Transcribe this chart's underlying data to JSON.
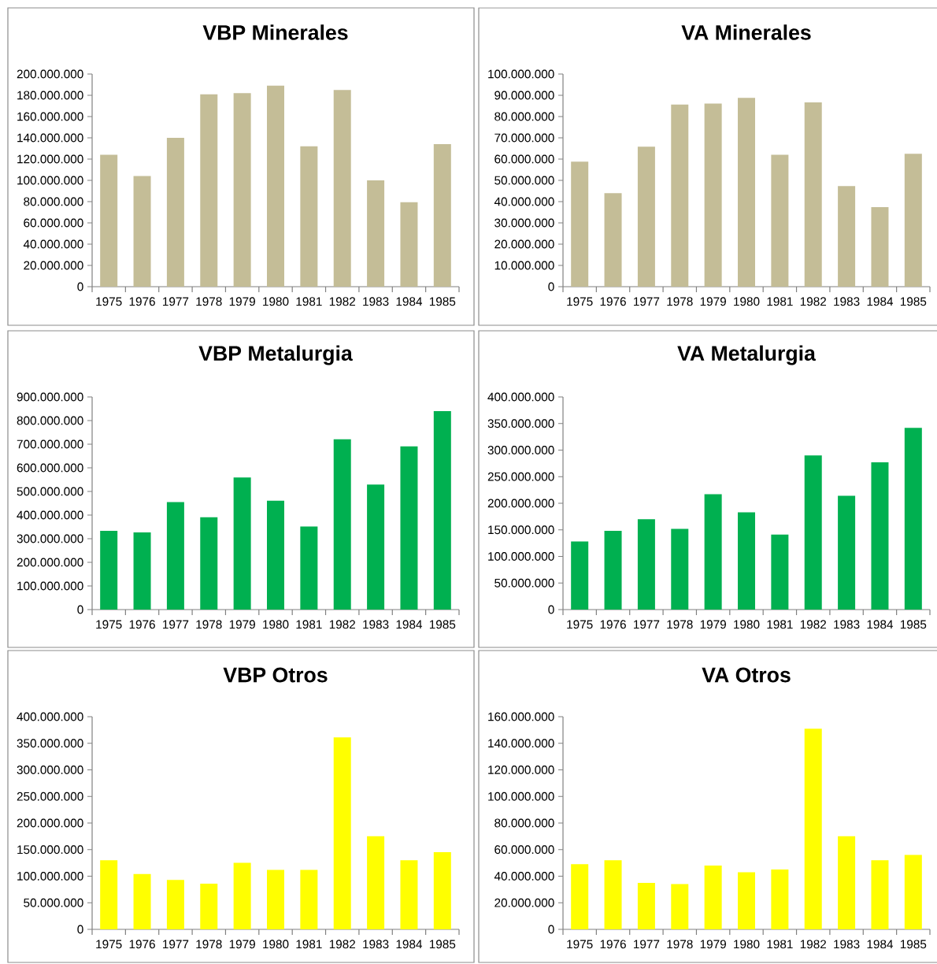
{
  "chart_data": [
    {
      "type": "bar",
      "title": "VBP Minerales",
      "categories": [
        "1975",
        "1976",
        "1977",
        "1978",
        "1979",
        "1980",
        "1981",
        "1982",
        "1983",
        "1984",
        "1985"
      ],
      "values": [
        124000000,
        104000000,
        140000000,
        181000000,
        182000000,
        189000000,
        132000000,
        185000000,
        100000000,
        79500000,
        134000000
      ],
      "color": "#c4bd97",
      "ylim": [
        0,
        200000000
      ],
      "yticks": [
        0,
        {
          "value": 20000000,
          "label": "20.000.000"
        },
        {
          "value": 40000000,
          "label": "40.000.000"
        },
        {
          "value": 60000000,
          "label": "60.000.000"
        },
        {
          "value": 80000000,
          "label": "80.000.000"
        },
        {
          "value": 100000000,
          "label": "100.000.000"
        },
        {
          "value": 120000000,
          "label": "120.000.000"
        },
        {
          "value": 140000000,
          "label": "140.000.000"
        },
        {
          "value": 160000000,
          "label": "160.000.000"
        },
        {
          "value": 180000000,
          "label": "180.000.000"
        },
        {
          "value": 200000000,
          "label": "200.000.000"
        }
      ]
    },
    {
      "type": "bar",
      "title": "VA Minerales",
      "categories": [
        "1975",
        "1976",
        "1977",
        "1978",
        "1979",
        "1980",
        "1981",
        "1982",
        "1983",
        "1984",
        "1985"
      ],
      "values": [
        58800000,
        44000000,
        65800000,
        85600000,
        86100000,
        88800000,
        62000000,
        86700000,
        47300000,
        37400000,
        62500000
      ],
      "color": "#c4bd97",
      "ylim": [
        0,
        100000000
      ],
      "yticks": [
        0,
        {
          "value": 10000000,
          "label": "10.000.000"
        },
        {
          "value": 20000000,
          "label": "20.000.000"
        },
        {
          "value": 30000000,
          "label": "30.000.000"
        },
        {
          "value": 40000000,
          "label": "40.000.000"
        },
        {
          "value": 50000000,
          "label": "50.000.000"
        },
        {
          "value": 60000000,
          "label": "60.000.000"
        },
        {
          "value": 70000000,
          "label": "70.000.000"
        },
        {
          "value": 80000000,
          "label": "80.000.000"
        },
        {
          "value": 90000000,
          "label": "90.000.000"
        },
        {
          "value": 100000000,
          "label": "100.000.000"
        }
      ]
    },
    {
      "type": "bar",
      "title": "VBP Metalurgia",
      "categories": [
        "1975",
        "1976",
        "1977",
        "1978",
        "1979",
        "1980",
        "1981",
        "1982",
        "1983",
        "1984",
        "1985"
      ],
      "values": [
        333000000,
        327000000,
        455000000,
        391000000,
        559000000,
        461000000,
        352000000,
        721000000,
        529000000,
        691000000,
        840000000
      ],
      "color": "#00b050",
      "ylim": [
        0,
        900000000
      ],
      "yticks": [
        0,
        {
          "value": 100000000,
          "label": "100.000.000"
        },
        {
          "value": 200000000,
          "label": "200.000.000"
        },
        {
          "value": 300000000,
          "label": "300.000.000"
        },
        {
          "value": 400000000,
          "label": "400.000.000"
        },
        {
          "value": 500000000,
          "label": "500.000.000"
        },
        {
          "value": 600000000,
          "label": "600.000.000"
        },
        {
          "value": 700000000,
          "label": "700.000.000"
        },
        {
          "value": 800000000,
          "label": "800.000.000"
        },
        {
          "value": 900000000,
          "label": "900.000.000"
        }
      ]
    },
    {
      "type": "bar",
      "title": "VA Metalurgia",
      "categories": [
        "1975",
        "1976",
        "1977",
        "1978",
        "1979",
        "1980",
        "1981",
        "1982",
        "1983",
        "1984",
        "1985"
      ],
      "values": [
        128000000,
        148000000,
        170000000,
        152000000,
        217000000,
        183000000,
        141000000,
        290000000,
        214000000,
        277000000,
        342000000
      ],
      "color": "#00b050",
      "ylim": [
        0,
        400000000
      ],
      "yticks": [
        0,
        {
          "value": 50000000,
          "label": "50.000.000"
        },
        {
          "value": 100000000,
          "label": "100.000.000"
        },
        {
          "value": 150000000,
          "label": "150.000.000"
        },
        {
          "value": 200000000,
          "label": "200.000.000"
        },
        {
          "value": 250000000,
          "label": "250.000.000"
        },
        {
          "value": 300000000,
          "label": "300.000.000"
        },
        {
          "value": 350000000,
          "label": "350.000.000"
        },
        {
          "value": 400000000,
          "label": "400.000.000"
        }
      ]
    },
    {
      "type": "bar",
      "title": "VBP Otros",
      "categories": [
        "1975",
        "1976",
        "1977",
        "1978",
        "1979",
        "1980",
        "1981",
        "1982",
        "1983",
        "1984",
        "1985"
      ],
      "values": [
        130000000,
        104000000,
        93000000,
        86000000,
        125000000,
        112000000,
        112000000,
        361000000,
        175000000,
        130000000,
        145000000
      ],
      "color": "#ffff00",
      "ylim": [
        0,
        400000000
      ],
      "yticks": [
        0,
        {
          "value": 50000000,
          "label": "50.000.000"
        },
        {
          "value": 100000000,
          "label": "100.000.000"
        },
        {
          "value": 150000000,
          "label": "150.000.000"
        },
        {
          "value": 200000000,
          "label": "200.000.000"
        },
        {
          "value": 250000000,
          "label": "250.000.000"
        },
        {
          "value": 300000000,
          "label": "300.000.000"
        },
        {
          "value": 350000000,
          "label": "350.000.000"
        },
        {
          "value": 400000000,
          "label": "400.000.000"
        }
      ]
    },
    {
      "type": "bar",
      "title": "VA Otros",
      "categories": [
        "1975",
        "1976",
        "1977",
        "1978",
        "1979",
        "1980",
        "1981",
        "1982",
        "1983",
        "1984",
        "1985"
      ],
      "values": [
        49000000,
        52000000,
        35000000,
        34000000,
        48000000,
        43000000,
        45000000,
        151000000,
        70000000,
        52000000,
        56000000
      ],
      "color": "#ffff00",
      "ylim": [
        0,
        160000000
      ],
      "yticks": [
        0,
        {
          "value": 20000000,
          "label": "20.000.000"
        },
        {
          "value": 40000000,
          "label": "40.000.000"
        },
        {
          "value": 60000000,
          "label": "60.000.000"
        },
        {
          "value": 80000000,
          "label": "80.000.000"
        },
        {
          "value": 100000000,
          "label": "100.000.000"
        },
        {
          "value": 120000000,
          "label": "120.000.000"
        },
        {
          "value": 140000000,
          "label": "140.000.000"
        },
        {
          "value": 160000000,
          "label": "160.000.000"
        }
      ]
    }
  ]
}
